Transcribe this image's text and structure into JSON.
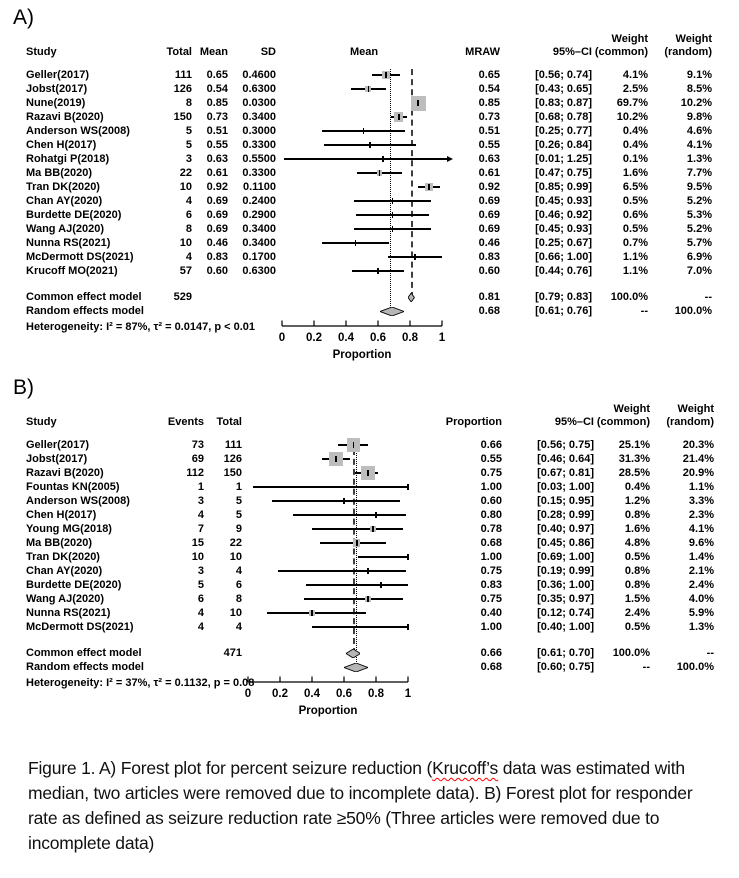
{
  "page": {
    "background": "#ffffff"
  },
  "colors": {
    "text": "#000000",
    "square_fill": "#bdbdbd",
    "diamond_fill": "#b5b5b5",
    "ref_line_common": "#3f3f3f",
    "ref_line_random": "#000000",
    "caption_spellcheck_underline": "#ff0000"
  },
  "caption": {
    "prefix": "Figure 1. A) Forest plot for percent seizure reduction (",
    "spellcheck_word": "Krucoff’s",
    "suffix": " data was estimated with median, two articles were removed due to incomplete data). B) Forest plot for responder rate as defined as seizure reduction rate ≥50% (Three articles were removed due to incomplete data)"
  },
  "chart_data": [
    {
      "type": "forest",
      "panel_label": "A)",
      "headers": {
        "study_label": "Study",
        "left_labels": [
          "Total",
          "Mean",
          "SD"
        ],
        "plot_label": "Mean",
        "est_label": "MRAW",
        "ci_label": "95%–CI",
        "weight_top": "Weight",
        "wc_label": "(common)",
        "wr_label": "(random)"
      },
      "xlim": [
        0,
        1
      ],
      "x_ticks": [
        "0",
        "0.2",
        "0.4",
        "0.6",
        "0.8",
        "1"
      ],
      "xlabel": "Proportion",
      "studies": [
        {
          "study": "Geller(2017)",
          "cells": [
            "111",
            "0.65",
            "0.4600"
          ],
          "est": "0.65",
          "lo": 0.56,
          "hi": 0.74,
          "ci": "[0.56; 0.74]",
          "wc": "4.1%",
          "wr": "9.1%"
        },
        {
          "study": "Jobst(2017)",
          "cells": [
            "126",
            "0.54",
            "0.6300"
          ],
          "est": "0.54",
          "lo": 0.43,
          "hi": 0.65,
          "ci": "[0.43; 0.65]",
          "wc": "2.5%",
          "wr": "8.5%"
        },
        {
          "study": "Nune(2019)",
          "cells": [
            "8",
            "0.85",
            "0.0300"
          ],
          "est": "0.85",
          "lo": 0.83,
          "hi": 0.87,
          "ci": "[0.83; 0.87]",
          "wc": "69.7%",
          "wr": "10.2%"
        },
        {
          "study": "Razavi B(2020)",
          "cells": [
            "150",
            "0.73",
            "0.3400"
          ],
          "est": "0.73",
          "lo": 0.68,
          "hi": 0.78,
          "ci": "[0.68; 0.78]",
          "wc": "10.2%",
          "wr": "9.8%"
        },
        {
          "study": "Anderson WS(2008)",
          "cells": [
            "5",
            "0.51",
            "0.3000"
          ],
          "est": "0.51",
          "lo": 0.25,
          "hi": 0.77,
          "ci": "[0.25; 0.77]",
          "wc": "0.4%",
          "wr": "4.6%"
        },
        {
          "study": "Chen H(2017)",
          "cells": [
            "5",
            "0.55",
            "0.3300"
          ],
          "est": "0.55",
          "lo": 0.26,
          "hi": 0.84,
          "ci": "[0.26; 0.84]",
          "wc": "0.4%",
          "wr": "4.1%"
        },
        {
          "study": "Rohatgi P(2018)",
          "cells": [
            "3",
            "0.63",
            "0.5500"
          ],
          "est": "0.63",
          "lo": 0.01,
          "hi": 1.25,
          "ci": "[0.01; 1.25]",
          "wc": "0.1%",
          "wr": "1.3%"
        },
        {
          "study": "Ma BB(2020)",
          "cells": [
            "22",
            "0.61",
            "0.3300"
          ],
          "est": "0.61",
          "lo": 0.47,
          "hi": 0.75,
          "ci": "[0.47; 0.75]",
          "wc": "1.6%",
          "wr": "7.7%"
        },
        {
          "study": "Tran DK(2020)",
          "cells": [
            "10",
            "0.92",
            "0.1100"
          ],
          "est": "0.92",
          "lo": 0.85,
          "hi": 0.99,
          "ci": "[0.85; 0.99]",
          "wc": "6.5%",
          "wr": "9.5%"
        },
        {
          "study": "Chan AY(2020)",
          "cells": [
            "4",
            "0.69",
            "0.2400"
          ],
          "est": "0.69",
          "lo": 0.45,
          "hi": 0.93,
          "ci": "[0.45; 0.93]",
          "wc": "0.5%",
          "wr": "5.2%"
        },
        {
          "study": "Burdette DE(2020)",
          "cells": [
            "6",
            "0.69",
            "0.2900"
          ],
          "est": "0.69",
          "lo": 0.46,
          "hi": 0.92,
          "ci": "[0.46; 0.92]",
          "wc": "0.6%",
          "wr": "5.3%"
        },
        {
          "study": "Wang AJ(2020)",
          "cells": [
            "8",
            "0.69",
            "0.3400"
          ],
          "est": "0.69",
          "lo": 0.45,
          "hi": 0.93,
          "ci": "[0.45; 0.93]",
          "wc": "0.5%",
          "wr": "5.2%"
        },
        {
          "study": "Nunna RS(2021)",
          "cells": [
            "10",
            "0.46",
            "0.3400"
          ],
          "est": "0.46",
          "lo": 0.25,
          "hi": 0.67,
          "ci": "[0.25; 0.67]",
          "wc": "0.7%",
          "wr": "5.7%"
        },
        {
          "study": "McDermott DS(2021)",
          "cells": [
            "4",
            "0.83",
            "0.1700"
          ],
          "est": "0.83",
          "lo": 0.66,
          "hi": 1.0,
          "ci": "[0.66; 1.00]",
          "wc": "1.1%",
          "wr": "6.9%"
        },
        {
          "study": "Krucoff MO(2021)",
          "cells": [
            "57",
            "0.60",
            "0.6300"
          ],
          "est": "0.60",
          "lo": 0.44,
          "hi": 0.76,
          "ci": "[0.44; 0.76]",
          "wc": "1.1%",
          "wr": "7.0%"
        }
      ],
      "common": {
        "label": "Common effect model",
        "cells": [
          "529",
          "",
          ""
        ],
        "est": "0.81",
        "lo": 0.79,
        "hi": 0.83,
        "ci": "[0.79; 0.83]",
        "wc": "100.0%",
        "wr": "--"
      },
      "random": {
        "label": "Random effects model",
        "cells": [
          "",
          "",
          ""
        ],
        "est": "0.68",
        "lo": 0.61,
        "hi": 0.76,
        "ci": "[0.61; 0.76]",
        "wc": "--",
        "wr": "100.0%"
      },
      "heterogeneity": "Heterogeneity: I² = 87%, τ² = 0.0147, p < 0.01"
    },
    {
      "type": "forest",
      "panel_label": "B)",
      "headers": {
        "study_label": "Study",
        "left_labels": [
          "Events",
          "Total"
        ],
        "plot_label": "",
        "est_label": "Proportion",
        "ci_label": "95%–CI",
        "weight_top": "Weight",
        "wc_label": "(common)",
        "wr_label": "(random)"
      },
      "xlim": [
        0,
        1
      ],
      "x_ticks": [
        "0",
        "0.2",
        "0.4",
        "0.6",
        "0.8",
        "1"
      ],
      "xlabel": "Proportion",
      "studies": [
        {
          "study": "Geller(2017)",
          "cells": [
            "73",
            "111"
          ],
          "est": "0.66",
          "lo": 0.56,
          "hi": 0.75,
          "ci": "[0.56; 0.75]",
          "wc": "25.1%",
          "wr": "20.3%"
        },
        {
          "study": "Jobst(2017)",
          "cells": [
            "69",
            "126"
          ],
          "est": "0.55",
          "lo": 0.46,
          "hi": 0.64,
          "ci": "[0.46; 0.64]",
          "wc": "31.3%",
          "wr": "21.4%"
        },
        {
          "study": "Razavi B(2020)",
          "cells": [
            "112",
            "150"
          ],
          "est": "0.75",
          "lo": 0.67,
          "hi": 0.81,
          "ci": "[0.67; 0.81]",
          "wc": "28.5%",
          "wr": "20.9%"
        },
        {
          "study": "Fountas KN(2005)",
          "cells": [
            "1",
            "1"
          ],
          "est": "1.00",
          "lo": 0.03,
          "hi": 1.0,
          "ci": "[0.03; 1.00]",
          "wc": "0.4%",
          "wr": "1.1%"
        },
        {
          "study": "Anderson WS(2008)",
          "cells": [
            "3",
            "5"
          ],
          "est": "0.60",
          "lo": 0.15,
          "hi": 0.95,
          "ci": "[0.15; 0.95]",
          "wc": "1.2%",
          "wr": "3.3%"
        },
        {
          "study": "Chen H(2017)",
          "cells": [
            "4",
            "5"
          ],
          "est": "0.80",
          "lo": 0.28,
          "hi": 0.99,
          "ci": "[0.28; 0.99]",
          "wc": "0.8%",
          "wr": "2.3%"
        },
        {
          "study": "Young MG(2018)",
          "cells": [
            "7",
            "9"
          ],
          "est": "0.78",
          "lo": 0.4,
          "hi": 0.97,
          "ci": "[0.40; 0.97]",
          "wc": "1.6%",
          "wr": "4.1%"
        },
        {
          "study": "Ma BB(2020)",
          "cells": [
            "15",
            "22"
          ],
          "est": "0.68",
          "lo": 0.45,
          "hi": 0.86,
          "ci": "[0.45; 0.86]",
          "wc": "4.8%",
          "wr": "9.6%"
        },
        {
          "study": "Tran DK(2020)",
          "cells": [
            "10",
            "10"
          ],
          "est": "1.00",
          "lo": 0.69,
          "hi": 1.0,
          "ci": "[0.69; 1.00]",
          "wc": "0.5%",
          "wr": "1.4%"
        },
        {
          "study": "Chan AY(2020)",
          "cells": [
            "3",
            "4"
          ],
          "est": "0.75",
          "lo": 0.19,
          "hi": 0.99,
          "ci": "[0.19; 0.99]",
          "wc": "0.8%",
          "wr": "2.1%"
        },
        {
          "study": "Burdette DE(2020)",
          "cells": [
            "5",
            "6"
          ],
          "est": "0.83",
          "lo": 0.36,
          "hi": 1.0,
          "ci": "[0.36; 1.00]",
          "wc": "0.8%",
          "wr": "2.4%"
        },
        {
          "study": "Wang AJ(2020)",
          "cells": [
            "6",
            "8"
          ],
          "est": "0.75",
          "lo": 0.35,
          "hi": 0.97,
          "ci": "[0.35; 0.97]",
          "wc": "1.5%",
          "wr": "4.0%"
        },
        {
          "study": "Nunna RS(2021)",
          "cells": [
            "4",
            "10"
          ],
          "est": "0.40",
          "lo": 0.12,
          "hi": 0.74,
          "ci": "[0.12; 0.74]",
          "wc": "2.4%",
          "wr": "5.9%"
        },
        {
          "study": "McDermott DS(2021)",
          "cells": [
            "4",
            "4"
          ],
          "est": "1.00",
          "lo": 0.4,
          "hi": 1.0,
          "ci": "[0.40; 1.00]",
          "wc": "0.5%",
          "wr": "1.3%"
        }
      ],
      "common": {
        "label": "Common effect model",
        "cells": [
          "",
          "471"
        ],
        "est": "0.66",
        "lo": 0.61,
        "hi": 0.7,
        "ci": "[0.61; 0.70]",
        "wc": "100.0%",
        "wr": "--"
      },
      "random": {
        "label": "Random effects model",
        "cells": [
          "",
          ""
        ],
        "est": "0.68",
        "lo": 0.6,
        "hi": 0.75,
        "ci": "[0.60; 0.75]",
        "wc": "--",
        "wr": "100.0%"
      },
      "heterogeneity": "Heterogeneity: I² = 37%, τ² = 0.1132, p = 0.08"
    }
  ]
}
